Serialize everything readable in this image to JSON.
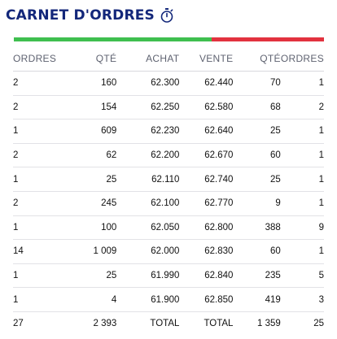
{
  "header": {
    "title": "CARNET D'ORDRES",
    "icon": "stopwatch-icon"
  },
  "balance": {
    "buy_fraction": 0.637,
    "buy_color": "#3fbf4f",
    "sell_color": "#e2323f"
  },
  "columns": [
    "ORDRES",
    "QTÉ",
    "ACHAT",
    "VENTE",
    "QTÉ",
    "ORDRES"
  ],
  "rows": [
    [
      "2",
      "160",
      "62.300",
      "62.440",
      "70",
      "1"
    ],
    [
      "2",
      "154",
      "62.250",
      "62.580",
      "68",
      "2"
    ],
    [
      "1",
      "609",
      "62.230",
      "62.640",
      "25",
      "1"
    ],
    [
      "2",
      "62",
      "62.200",
      "62.670",
      "60",
      "1"
    ],
    [
      "1",
      "25",
      "62.110",
      "62.740",
      "25",
      "1"
    ],
    [
      "2",
      "245",
      "62.100",
      "62.770",
      "9",
      "1"
    ],
    [
      "1",
      "100",
      "62.050",
      "62.800",
      "388",
      "9"
    ],
    [
      "14",
      "1 009",
      "62.000",
      "62.830",
      "60",
      "1"
    ],
    [
      "1",
      "25",
      "61.990",
      "62.840",
      "235",
      "5"
    ],
    [
      "1",
      "4",
      "61.900",
      "62.850",
      "419",
      "3"
    ]
  ],
  "totals": [
    "27",
    "2 393",
    "TOTAL",
    "TOTAL",
    "1 359",
    "25"
  ]
}
